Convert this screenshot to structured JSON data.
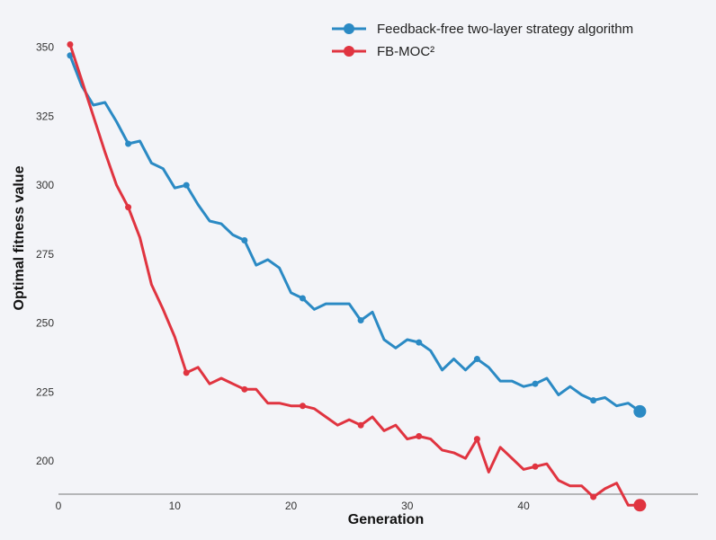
{
  "chart_data": {
    "type": "line",
    "xlabel": "Generation",
    "ylabel": "Optimal fitness value",
    "xlim": [
      0,
      55
    ],
    "ylim": [
      188,
      358
    ],
    "xticks": [
      0,
      10,
      20,
      30,
      40,
      50
    ],
    "yticks": [
      200,
      225,
      250,
      275,
      300,
      325,
      350
    ],
    "grid": false,
    "legend_position": "top-right",
    "series": [
      {
        "name": "Feedback-free two-layer strategy algorithm",
        "color": "#2b8ac4",
        "markers_at": [
          1,
          6,
          11,
          16,
          21,
          26,
          31,
          36,
          41,
          46
        ],
        "end_marker_at": 50,
        "x": [
          1,
          2,
          3,
          4,
          5,
          6,
          7,
          8,
          9,
          10,
          11,
          12,
          13,
          14,
          15,
          16,
          17,
          18,
          19,
          20,
          21,
          22,
          23,
          24,
          25,
          26,
          27,
          28,
          29,
          30,
          31,
          32,
          33,
          34,
          35,
          36,
          37,
          38,
          39,
          40,
          41,
          42,
          43,
          44,
          45,
          46,
          47,
          48,
          49,
          50
        ],
        "values": [
          347,
          336,
          329,
          330,
          323,
          315,
          316,
          308,
          306,
          299,
          300,
          293,
          287,
          286,
          282,
          280,
          271,
          273,
          270,
          261,
          259,
          255,
          257,
          257,
          257,
          251,
          254,
          244,
          241,
          244,
          243,
          240,
          233,
          237,
          233,
          237,
          234,
          229,
          229,
          227,
          228,
          230,
          224,
          227,
          224,
          222,
          223,
          220,
          221,
          218
        ]
      },
      {
        "name": "FB-MOC²",
        "color": "#e03440",
        "markers_at": [
          1,
          6,
          11,
          16,
          21,
          26,
          31,
          36,
          41,
          46
        ],
        "end_marker_at": 50,
        "x": [
          1,
          2,
          3,
          4,
          5,
          6,
          7,
          8,
          9,
          10,
          11,
          12,
          13,
          14,
          15,
          16,
          17,
          18,
          19,
          20,
          21,
          22,
          23,
          24,
          25,
          26,
          27,
          28,
          29,
          30,
          31,
          32,
          33,
          34,
          35,
          36,
          37,
          38,
          39,
          40,
          41,
          42,
          43,
          44,
          45,
          46,
          47,
          48,
          49,
          50
        ],
        "values": [
          351,
          338,
          325,
          312,
          300,
          292,
          281,
          264,
          255,
          245,
          232,
          234,
          228,
          230,
          228,
          226,
          226,
          221,
          221,
          220,
          220,
          219,
          216,
          213,
          215,
          213,
          216,
          211,
          213,
          208,
          209,
          208,
          204,
          203,
          201,
          208,
          196,
          205,
          201,
          197,
          198,
          199,
          193,
          191,
          191,
          187,
          190,
          192,
          184,
          184
        ]
      }
    ]
  }
}
